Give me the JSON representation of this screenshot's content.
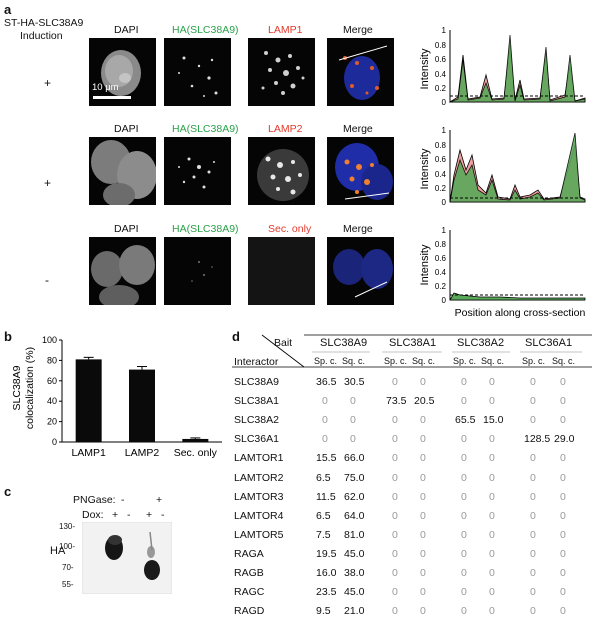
{
  "panel_a": {
    "label": "a",
    "construct": "ST-HA-SLC38A9",
    "induction": "Induction",
    "rows": [
      {
        "headers": [
          "DAPI",
          "HA(SLC38A9)",
          "LAMP1",
          "Merge"
        ],
        "induction": "+"
      },
      {
        "headers": [
          "DAPI",
          "HA(SLC38A9)",
          "LAMP2",
          "Merge"
        ],
        "induction": "+"
      },
      {
        "headers": [
          "DAPI",
          "HA(SLC38A9)",
          "Sec. only",
          "Merge"
        ],
        "induction": "-"
      }
    ],
    "scale_bar": "10 μm",
    "colors": {
      "green": "#2aa14a",
      "red": "#e23b2e",
      "fill_green": "#5aa85a",
      "fill_red": "#f0a0a0"
    },
    "intensity_ylabel": "Intensity",
    "intensity_xlabel": "Position along cross-section",
    "intensity_ticks": [
      "1",
      "0.8",
      "0.6",
      "0.4",
      "0.2",
      "0"
    ]
  },
  "panel_b": {
    "label": "b",
    "ylabel_line1": "SLC38A9",
    "ylabel_line2": "colocalization (%)",
    "ticks": [
      "100",
      "80",
      "60",
      "40",
      "20",
      "0"
    ]
  },
  "chart_data": {
    "type": "bar",
    "categories": [
      "LAMP1",
      "LAMP2",
      "Sec. only"
    ],
    "values": [
      81,
      71,
      3
    ],
    "errors": [
      2,
      3,
      1
    ],
    "ylabel": "SLC38A9 colocalization (%)",
    "ylim": [
      0,
      100
    ]
  },
  "panel_c": {
    "label": "c",
    "pngase_label": "PNGase:",
    "pngase_signs": [
      "-",
      "+"
    ],
    "dox_label": "Dox:",
    "dox_signs": [
      "+",
      "-",
      "+",
      "-"
    ],
    "blot_label": "HA",
    "markers": [
      "130-",
      "100-",
      "70-",
      "55-"
    ]
  },
  "panel_d": {
    "label": "d",
    "bait_label": "Bait",
    "interactor_label": "Interactor",
    "baits": [
      "SLC38A9",
      "SLC38A1",
      "SLC38A2",
      "SLC36A1"
    ],
    "sub_headers": [
      "Sp. c.",
      "Sq. c."
    ],
    "rows": [
      {
        "name": "SLC38A9",
        "values": [
          "36.5",
          "30.5",
          "0",
          "0",
          "0",
          "0",
          "0",
          "0"
        ]
      },
      {
        "name": "SLC38A1",
        "values": [
          "0",
          "0",
          "73.5",
          "20.5",
          "0",
          "0",
          "0",
          "0"
        ]
      },
      {
        "name": "SLC38A2",
        "values": [
          "0",
          "0",
          "0",
          "0",
          "65.5",
          "15.0",
          "0",
          "0"
        ]
      },
      {
        "name": "SLC36A1",
        "values": [
          "0",
          "0",
          "0",
          "0",
          "0",
          "0",
          "128.5",
          "29.0"
        ]
      },
      {
        "name": "LAMTOR1",
        "values": [
          "15.5",
          "66.0",
          "0",
          "0",
          "0",
          "0",
          "0",
          "0"
        ]
      },
      {
        "name": "LAMTOR2",
        "values": [
          "6.5",
          "75.0",
          "0",
          "0",
          "0",
          "0",
          "0",
          "0"
        ]
      },
      {
        "name": "LAMTOR3",
        "values": [
          "11.5",
          "62.0",
          "0",
          "0",
          "0",
          "0",
          "0",
          "0"
        ]
      },
      {
        "name": "LAMTOR4",
        "values": [
          "6.5",
          "64.0",
          "0",
          "0",
          "0",
          "0",
          "0",
          "0"
        ]
      },
      {
        "name": "LAMTOR5",
        "values": [
          "7.5",
          "81.0",
          "0",
          "0",
          "0",
          "0",
          "0",
          "0"
        ]
      },
      {
        "name": "RAGA",
        "values": [
          "19.5",
          "45.0",
          "0",
          "0",
          "0",
          "0",
          "0",
          "0"
        ]
      },
      {
        "name": "RAGB",
        "values": [
          "16.0",
          "38.0",
          "0",
          "0",
          "0",
          "0",
          "0",
          "0"
        ]
      },
      {
        "name": "RAGC",
        "values": [
          "23.5",
          "45.0",
          "0",
          "0",
          "0",
          "0",
          "0",
          "0"
        ]
      },
      {
        "name": "RAGD",
        "values": [
          "9.5",
          "21.0",
          "0",
          "0",
          "0",
          "0",
          "0",
          "0"
        ]
      }
    ]
  }
}
